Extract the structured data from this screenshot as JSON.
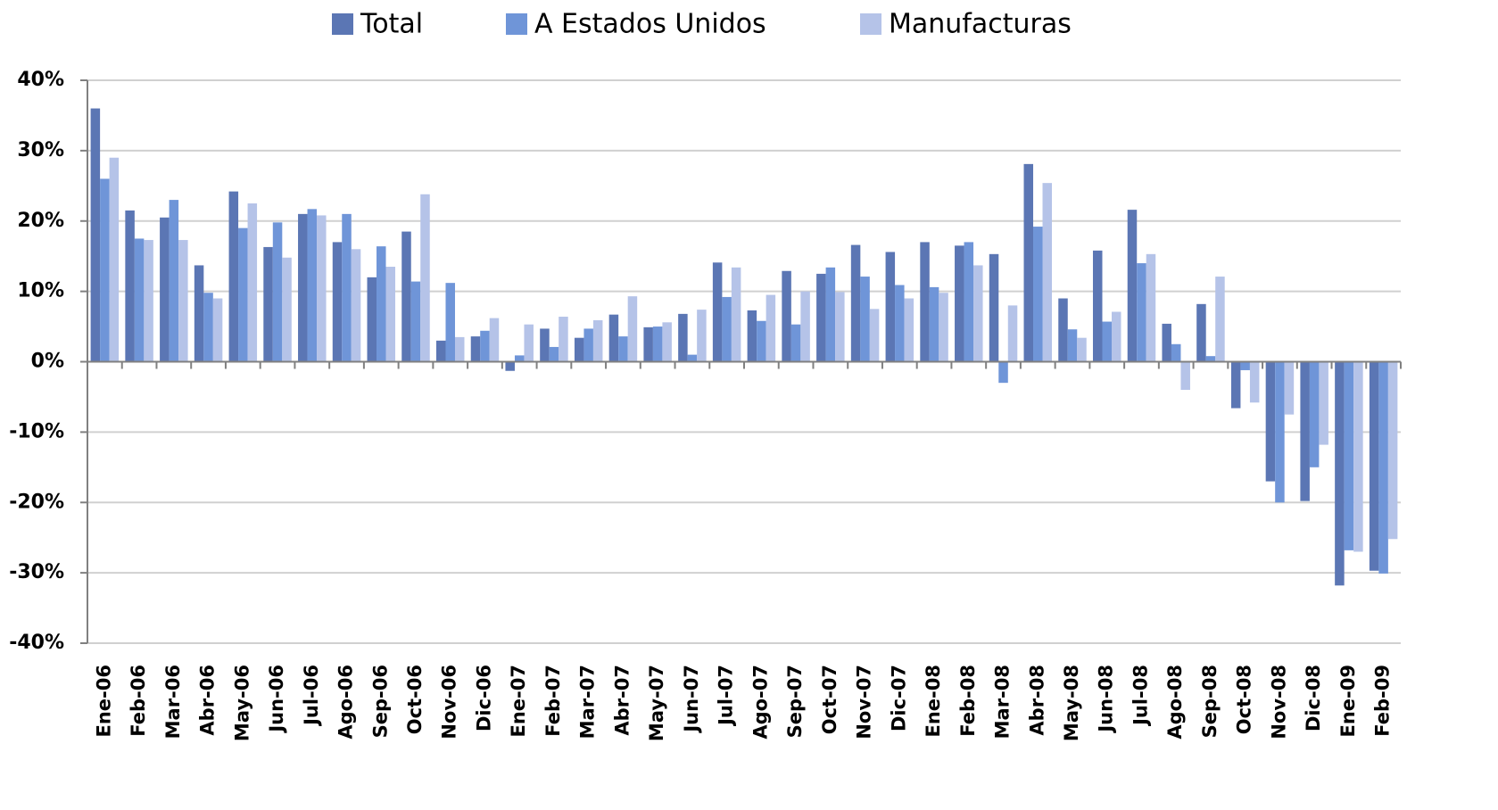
{
  "chart_data": {
    "type": "bar",
    "categories": [
      "Ene-06",
      "Feb-06",
      "Mar-06",
      "Abr-06",
      "May-06",
      "Jun-06",
      "Jul-06",
      "Ago-06",
      "Sep-06",
      "Oct-06",
      "Nov-06",
      "Dic-06",
      "Ene-07",
      "Feb-07",
      "Mar-07",
      "Abr-07",
      "May-07",
      "Jun-07",
      "Jul-07",
      "Ago-07",
      "Sep-07",
      "Oct-07",
      "Nov-07",
      "Dic-07",
      "Ene-08",
      "Feb-08",
      "Mar-08",
      "Abr-08",
      "May-08",
      "Jun-08",
      "Jul-08",
      "Ago-08",
      "Sep-08",
      "Oct-08",
      "Nov-08",
      "Dic-08",
      "Ene-09",
      "Feb-09"
    ],
    "series": [
      {
        "name": "Total",
        "color": "#5b76b4",
        "values": [
          36,
          21.5,
          20.5,
          13.7,
          24.2,
          16.3,
          21,
          17,
          12,
          18.5,
          3,
          3.6,
          -1.3,
          4.7,
          3.4,
          6.7,
          4.9,
          6.8,
          14.1,
          7.3,
          12.9,
          12.5,
          16.6,
          15.6,
          17,
          16.5,
          15.3,
          28.1,
          9,
          15.8,
          21.6,
          5.4,
          8.2,
          -6.6,
          -17,
          -19.8,
          -31.8,
          -29.7
        ]
      },
      {
        "name": "A Estados Unidos",
        "color": "#6f95d8",
        "values": [
          26,
          17.5,
          23,
          9.8,
          19,
          19.8,
          21.7,
          21,
          16.4,
          11.4,
          11.2,
          4.4,
          0.9,
          2.1,
          4.7,
          3.6,
          5,
          1,
          9.2,
          5.8,
          5.3,
          13.4,
          12.1,
          10.9,
          10.6,
          17,
          -3,
          19.2,
          4.6,
          5.7,
          14,
          2.5,
          0.8,
          -1.2,
          -20,
          -15,
          -26.8,
          -30.1
        ]
      },
      {
        "name": "Manufacturas",
        "color": "#b5c3e8",
        "values": [
          29,
          17.3,
          17.3,
          9,
          22.5,
          14.8,
          20.8,
          16,
          13.5,
          23.8,
          3.5,
          6.2,
          5.3,
          6.4,
          5.9,
          9.3,
          5.6,
          7.4,
          13.4,
          9.5,
          10,
          9.9,
          7.5,
          9,
          9.8,
          13.7,
          8,
          25.4,
          3.4,
          7.1,
          15.3,
          -4,
          12.1,
          -5.8,
          -7.5,
          -11.8,
          -27,
          -25.2
        ]
      }
    ],
    "ylim": [
      -40,
      40
    ],
    "yticks": [
      {
        "value": -40,
        "label": "-40%"
      },
      {
        "value": -30,
        "label": "-30%"
      },
      {
        "value": -20,
        "label": "-20%"
      },
      {
        "value": -10,
        "label": "-10%"
      },
      {
        "value": 0,
        "label": "0%"
      },
      {
        "value": 10,
        "label": "10%"
      },
      {
        "value": 20,
        "label": "20%"
      },
      {
        "value": 30,
        "label": "30%"
      },
      {
        "value": 40,
        "label": "40%"
      }
    ],
    "grid": true,
    "legend": "top"
  }
}
